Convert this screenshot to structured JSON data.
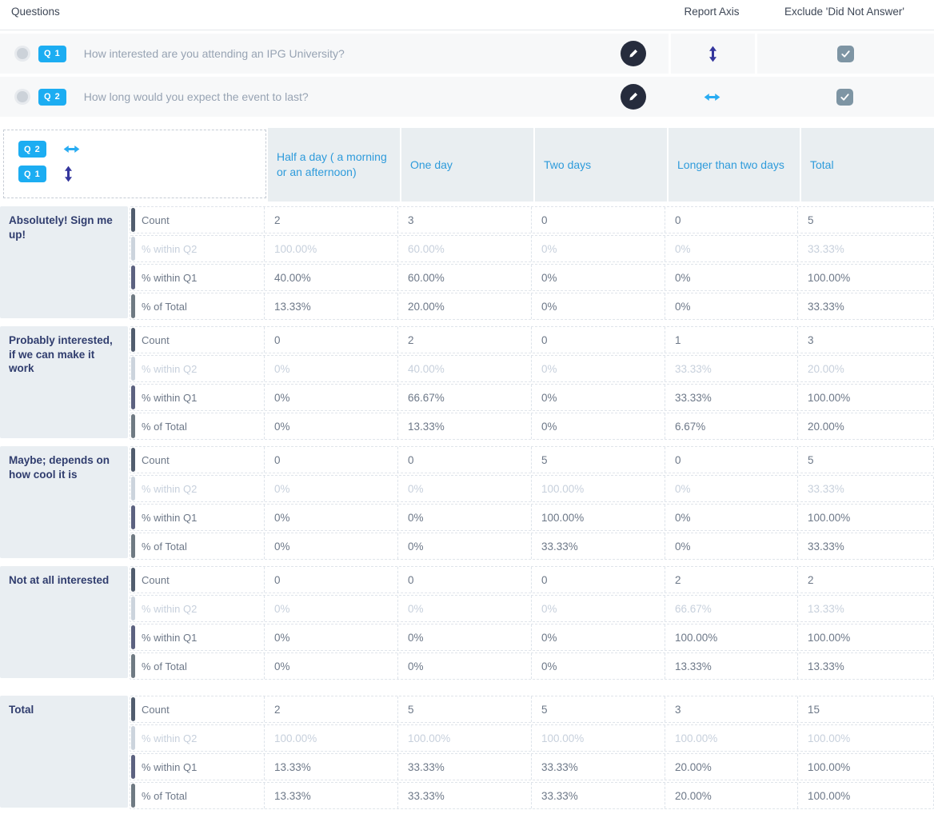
{
  "questions_panel": {
    "header": "Questions",
    "report_axis_header": "Report Axis",
    "exclude_header": "Exclude 'Did Not Answer'",
    "items": [
      {
        "badge": "Q 1",
        "text": "How interested are you attending an IPG University?",
        "axis": "vertical",
        "excluded": true
      },
      {
        "badge": "Q 2",
        "text": "How long would you expect the event to last?",
        "axis": "horizontal",
        "excluded": true
      }
    ]
  },
  "crosstab": {
    "corner": {
      "col_badge": "Q 2",
      "col_axis": "horizontal",
      "row_badge": "Q 1",
      "row_axis": "vertical"
    },
    "columns": [
      "Half a day ( a morning or an afternoon)",
      "One day",
      "Two days",
      "Longer than two days",
      "Total"
    ],
    "groups": [
      {
        "label": "Absolutely! Sign me up!",
        "rows": [
          {
            "metric": "Count",
            "faded": false,
            "values": [
              "2",
              "3",
              "0",
              "0",
              "5"
            ]
          },
          {
            "metric": "% within Q2",
            "faded": true,
            "values": [
              "100.00%",
              "60.00%",
              "0%",
              "0%",
              "33.33%"
            ]
          },
          {
            "metric": "% within Q1",
            "faded": false,
            "values": [
              "40.00%",
              "60.00%",
              "0%",
              "0%",
              "100.00%"
            ]
          },
          {
            "metric": "% of Total",
            "faded": false,
            "values": [
              "13.33%",
              "20.00%",
              "0%",
              "0%",
              "33.33%"
            ]
          }
        ]
      },
      {
        "label": "Probably interested, if we can make it work",
        "rows": [
          {
            "metric": "Count",
            "faded": false,
            "values": [
              "0",
              "2",
              "0",
              "1",
              "3"
            ]
          },
          {
            "metric": "% within Q2",
            "faded": true,
            "values": [
              "0%",
              "40.00%",
              "0%",
              "33.33%",
              "20.00%"
            ]
          },
          {
            "metric": "% within Q1",
            "faded": false,
            "values": [
              "0%",
              "66.67%",
              "0%",
              "33.33%",
              "100.00%"
            ]
          },
          {
            "metric": "% of Total",
            "faded": false,
            "values": [
              "0%",
              "13.33%",
              "0%",
              "6.67%",
              "20.00%"
            ]
          }
        ]
      },
      {
        "label": "Maybe; depends on how cool it is",
        "rows": [
          {
            "metric": "Count",
            "faded": false,
            "values": [
              "0",
              "0",
              "5",
              "0",
              "5"
            ]
          },
          {
            "metric": "% within Q2",
            "faded": true,
            "values": [
              "0%",
              "0%",
              "100.00%",
              "0%",
              "33.33%"
            ]
          },
          {
            "metric": "% within Q1",
            "faded": false,
            "values": [
              "0%",
              "0%",
              "100.00%",
              "0%",
              "100.00%"
            ]
          },
          {
            "metric": "% of Total",
            "faded": false,
            "values": [
              "0%",
              "0%",
              "33.33%",
              "0%",
              "33.33%"
            ]
          }
        ]
      },
      {
        "label": "Not at all interested",
        "rows": [
          {
            "metric": "Count",
            "faded": false,
            "values": [
              "0",
              "0",
              "0",
              "2",
              "2"
            ]
          },
          {
            "metric": "% within Q2",
            "faded": true,
            "values": [
              "0%",
              "0%",
              "0%",
              "66.67%",
              "13.33%"
            ]
          },
          {
            "metric": "% within Q1",
            "faded": false,
            "values": [
              "0%",
              "0%",
              "0%",
              "100.00%",
              "100.00%"
            ]
          },
          {
            "metric": "% of Total",
            "faded": false,
            "values": [
              "0%",
              "0%",
              "0%",
              "13.33%",
              "13.33%"
            ]
          }
        ]
      },
      {
        "label": "Total",
        "is_total": true,
        "rows": [
          {
            "metric": "Count",
            "faded": false,
            "values": [
              "2",
              "5",
              "5",
              "3",
              "15"
            ]
          },
          {
            "metric": "% within Q2",
            "faded": true,
            "values": [
              "100.00%",
              "100.00%",
              "100.00%",
              "100.00%",
              "100.00%"
            ]
          },
          {
            "metric": "% within Q1",
            "faded": false,
            "values": [
              "13.33%",
              "33.33%",
              "33.33%",
              "20.00%",
              "100.00%"
            ]
          },
          {
            "metric": "% of Total",
            "faded": false,
            "values": [
              "13.33%",
              "33.33%",
              "33.33%",
              "20.00%",
              "100.00%"
            ]
          }
        ]
      }
    ]
  },
  "colors": {
    "badge_blue": "#1cadf2",
    "horizontal_axis_arrow": "#29acf2",
    "vertical_axis_arrow": "#34369d",
    "column_header_text": "#2e9bdb",
    "row_category_text": "#303d6e",
    "checkbox_fill": "#7e95a4",
    "row_bars": [
      "#515d6e",
      "#ccd4dd",
      "#5c6280",
      "#6f7a83"
    ]
  }
}
